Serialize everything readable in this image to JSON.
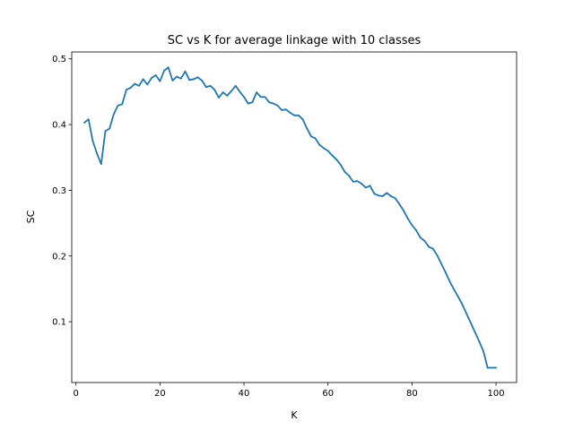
{
  "chart_data": {
    "type": "line",
    "title": "SC vs K for average linkage with 10 classes",
    "xlabel": "K",
    "ylabel": "SC",
    "xlim": [
      -1,
      104.9
    ],
    "ylim": [
      0.0075,
      0.5105
    ],
    "xticks": [
      0,
      20,
      40,
      60,
      80,
      100
    ],
    "xtick_labels": [
      "0",
      "20",
      "40",
      "60",
      "80",
      "100"
    ],
    "yticks": [
      0.1,
      0.2,
      0.3,
      0.4,
      0.5
    ],
    "ytick_labels": [
      "0.1",
      "0.2",
      "0.3",
      "0.4",
      "0.5"
    ],
    "grid": false,
    "series": [
      {
        "color": "#1f77b4",
        "x": [
          2,
          3,
          4,
          5,
          6,
          7,
          8,
          9,
          10,
          11,
          12,
          13,
          14,
          15,
          16,
          17,
          18,
          19,
          20,
          21,
          22,
          23,
          24,
          25,
          26,
          27,
          28,
          29,
          30,
          31,
          32,
          33,
          34,
          35,
          36,
          37,
          38,
          39,
          40,
          41,
          42,
          43,
          44,
          45,
          46,
          47,
          48,
          49,
          50,
          51,
          52,
          53,
          54,
          55,
          56,
          57,
          58,
          59,
          60,
          61,
          62,
          63,
          64,
          65,
          66,
          67,
          68,
          69,
          70,
          71,
          72,
          73,
          74,
          75,
          76,
          77,
          78,
          79,
          80,
          81,
          82,
          83,
          84,
          85,
          86,
          87,
          88,
          89,
          90,
          91,
          92,
          93,
          94,
          95,
          96,
          97,
          98,
          99,
          100
        ],
        "values": [
          0.403,
          0.408,
          0.375,
          0.356,
          0.34,
          0.39,
          0.394,
          0.416,
          0.429,
          0.431,
          0.453,
          0.456,
          0.462,
          0.459,
          0.469,
          0.461,
          0.471,
          0.475,
          0.466,
          0.482,
          0.487,
          0.467,
          0.473,
          0.47,
          0.481,
          0.468,
          0.469,
          0.472,
          0.467,
          0.457,
          0.459,
          0.453,
          0.441,
          0.449,
          0.444,
          0.451,
          0.459,
          0.45,
          0.442,
          0.432,
          0.434,
          0.449,
          0.442,
          0.442,
          0.434,
          0.432,
          0.429,
          0.422,
          0.423,
          0.418,
          0.414,
          0.414,
          0.408,
          0.394,
          0.382,
          0.379,
          0.369,
          0.364,
          0.36,
          0.353,
          0.347,
          0.339,
          0.328,
          0.322,
          0.313,
          0.314,
          0.31,
          0.304,
          0.307,
          0.295,
          0.292,
          0.291,
          0.296,
          0.291,
          0.288,
          0.279,
          0.269,
          0.257,
          0.247,
          0.239,
          0.228,
          0.223,
          0.214,
          0.211,
          0.201,
          0.188,
          0.175,
          0.161,
          0.149,
          0.138,
          0.126,
          0.112,
          0.098,
          0.084,
          0.07,
          0.055,
          0.03,
          0.03,
          0.03
        ]
      }
    ]
  }
}
